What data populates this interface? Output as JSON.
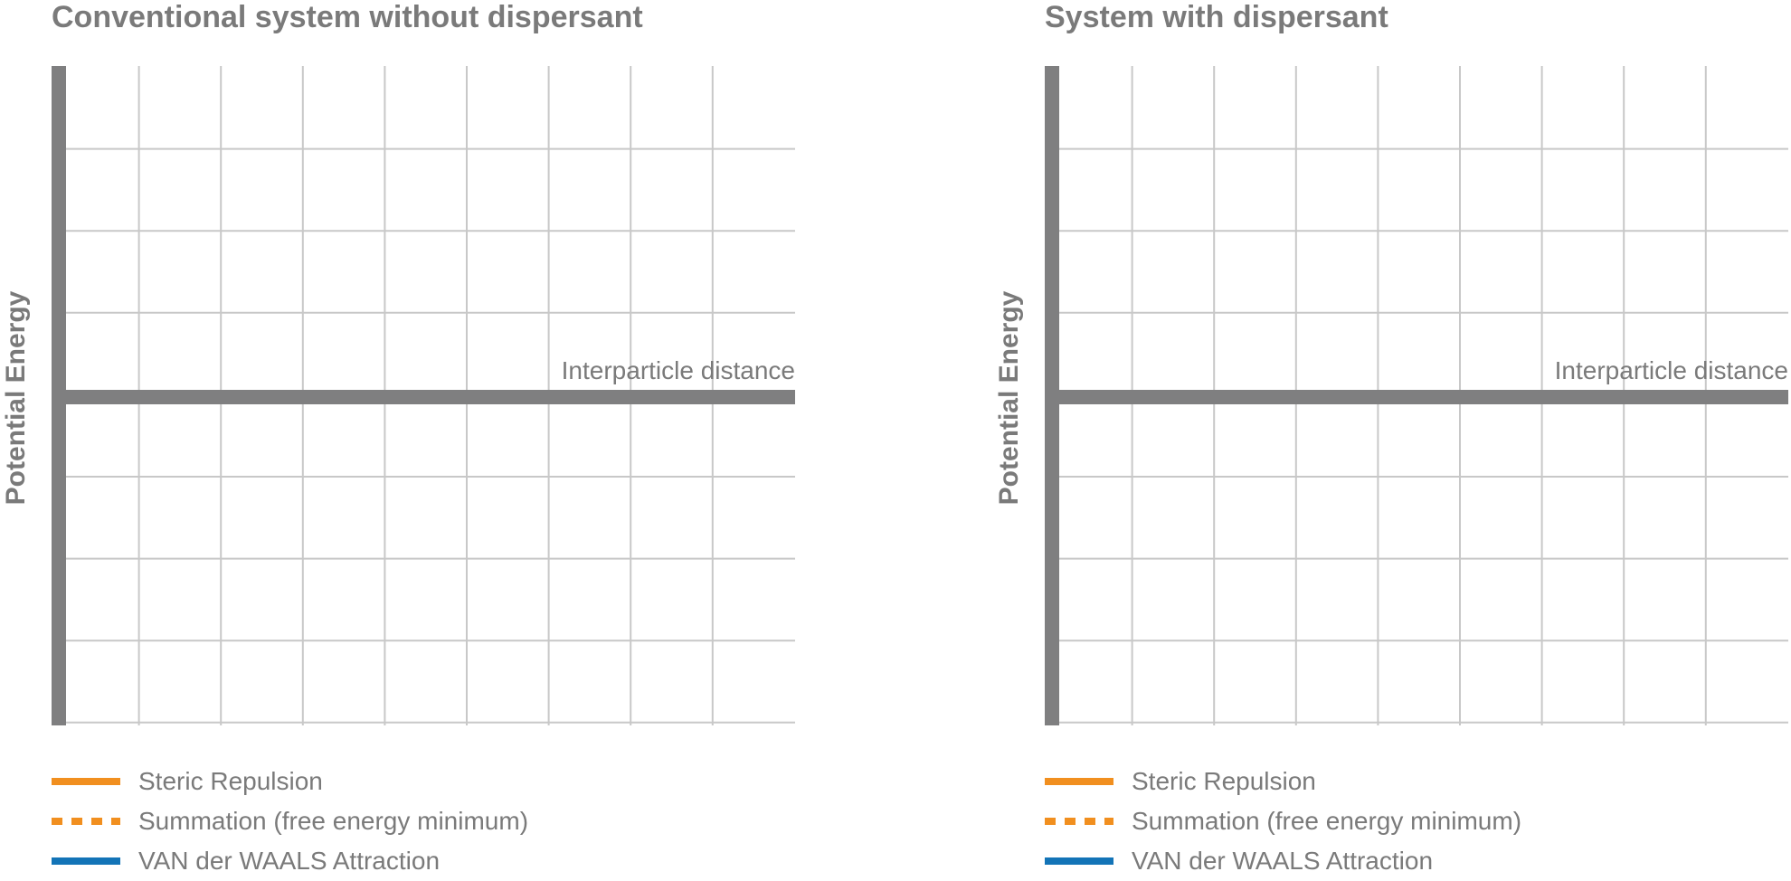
{
  "chart_data": [
    {
      "type": "line",
      "title": "Conventional system without dispersant",
      "ylabel": "Potential Energy",
      "xlabel": "Interparticle distance",
      "grid": true,
      "series": [],
      "legend": [
        {
          "label": "Steric Repulsion",
          "style": "solid",
          "color": "#f18f1f"
        },
        {
          "label": "Summation (free energy minimum)",
          "style": "dotted",
          "color": "#f18f1f"
        },
        {
          "label": "VAN der WAALS Attraction",
          "style": "solid",
          "color": "#1374b7"
        }
      ],
      "legend_position": "bottom-left"
    },
    {
      "type": "line",
      "title": "System with dispersant",
      "ylabel": "Potential Energy",
      "xlabel": "Interparticle distance",
      "grid": true,
      "series": [],
      "legend": [
        {
          "label": "Steric Repulsion",
          "style": "solid",
          "color": "#f18f1f"
        },
        {
          "label": "Summation (free energy minimum)",
          "style": "dotted",
          "color": "#f18f1f"
        },
        {
          "label": "VAN der WAALS Attraction",
          "style": "solid",
          "color": "#1374b7"
        }
      ],
      "legend_position": "bottom-left"
    }
  ],
  "colors": {
    "axis": "#7f7f80",
    "grid": "#c8c8c8",
    "text": "#7a7a7a"
  }
}
